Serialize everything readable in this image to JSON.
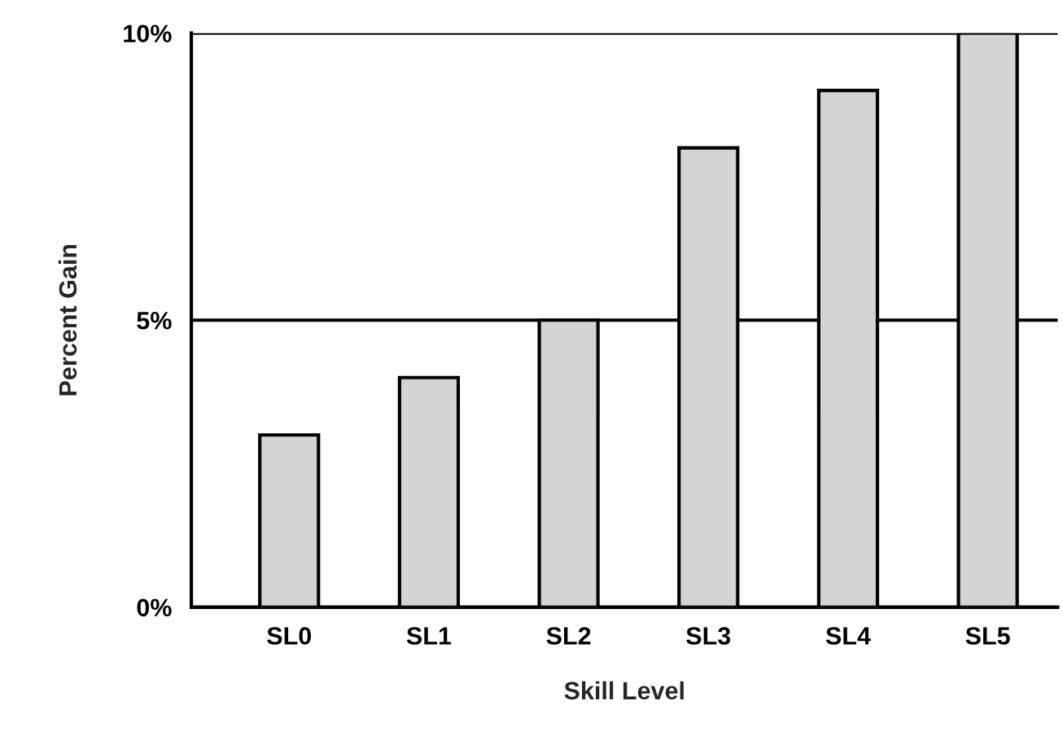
{
  "chart_data": {
    "type": "bar",
    "xlabel": "Skill Level",
    "ylabel": "Percent Gain",
    "categories": [
      "SL0",
      "SL1",
      "SL2",
      "SL3",
      "SL4",
      "SL5"
    ],
    "values": [
      3,
      4,
      5,
      8,
      9,
      10
    ],
    "color": "#d4d4d4",
    "ylim": [
      0,
      10
    ],
    "yticks": [
      {
        "value": 0,
        "label": "0%"
      },
      {
        "value": 5,
        "label": "5%"
      },
      {
        "value": 10,
        "label": "10%"
      }
    ],
    "grid": "y"
  }
}
